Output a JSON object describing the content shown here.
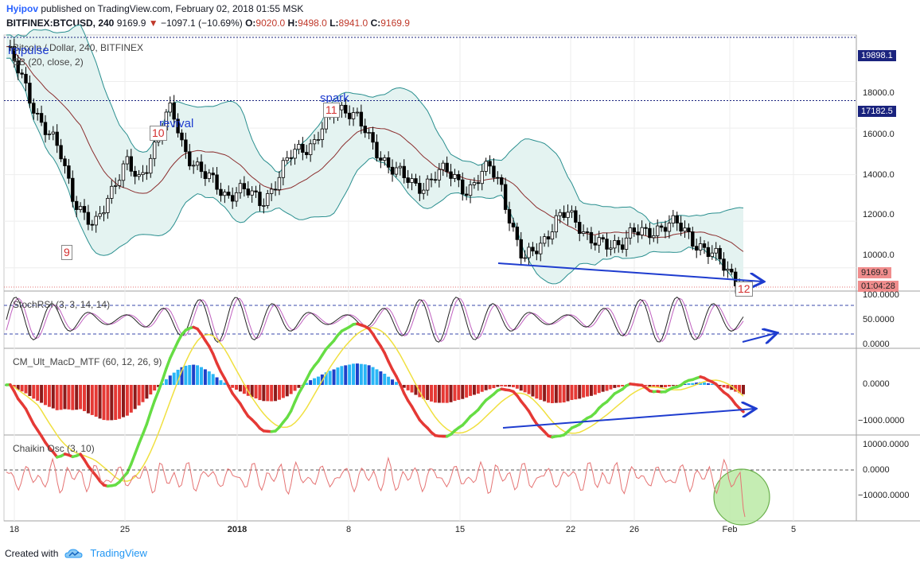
{
  "header": {
    "publisher": "Hyipov",
    "published_text": "published on TradingView.com, February 02, 2018 01:55 MSK",
    "symbol": "BITFINEX:BTCUSD, 240",
    "last": "9169.9",
    "change": "−1097.1 (−10.69%)",
    "o_label": "O:",
    "o_value": "9020.0",
    "h_label": "H:",
    "h_value": "9498.0",
    "l_label": "L:",
    "l_value": "8941.0",
    "c_label": "C:",
    "c_value": "9169.9"
  },
  "main_pane": {
    "title": "Bitcoin / Dollar, 240, BITFINEX",
    "indicator": "BB (20, close, 2)",
    "yaxis_ticks": [
      "18000.0",
      "16000.0",
      "14000.0",
      "12000.0",
      "10000.0"
    ],
    "price_tags": {
      "level_high": "19898.1",
      "level_mid": "17182.5",
      "last": "9169.9",
      "countdown": "01:04:28"
    },
    "annotations": {
      "impulse": "impulse",
      "revival": "revival",
      "spark": "spark"
    },
    "counts": [
      "9",
      "10",
      "11",
      "12"
    ]
  },
  "stochrsi_pane": {
    "title": "StochRSI (3, 3, 14, 14)",
    "yaxis_ticks": [
      "100.0000",
      "50.0000",
      "0.0000"
    ]
  },
  "macd_pane": {
    "title": "CM_Ult_MacD_MTF (60, 12, 26, 9)",
    "yaxis_ticks": [
      "0.0000",
      "−1000.0000"
    ]
  },
  "chaikin_pane": {
    "title": "Chaikin Osc (3, 10)",
    "yaxis_ticks": [
      "10000.0000",
      "0.0000",
      "−10000.0000"
    ]
  },
  "time_axis": [
    "18",
    "25",
    "2018",
    "8",
    "15",
    "22",
    "26",
    "Feb",
    "5"
  ],
  "footer": {
    "created_with": "Created with",
    "brand": "TradingView"
  },
  "colors": {
    "bull": "#ffffff",
    "bear": "#000000",
    "bb_band": "#2a8f8f",
    "bb_fill": "#e4f3f1",
    "basis": "#8b2e2e",
    "level_line": "#1a237e",
    "trend": "#1e3ccf",
    "stoch_k": "#222222",
    "stoch_d": "#c061c0",
    "macd_up": "#66dd44",
    "macd_down": "#e53935",
    "signal": "#f0e040",
    "chaikin": "#e57373",
    "circle_fill": "#b6e8a0"
  },
  "chart_data": [
    {
      "type": "candlestick",
      "title": "Bitcoin / Dollar, 240, BITFINEX",
      "x_ticks": [
        "18",
        "25",
        "2018",
        "8",
        "15",
        "22",
        "26",
        "Feb",
        "5"
      ],
      "ylim": [
        9000,
        20000
      ],
      "close_points": [
        19500,
        18500,
        17500,
        16400,
        15600,
        14800,
        13200,
        12300,
        11600,
        12800,
        13900,
        14500,
        13600,
        14700,
        16000,
        16800,
        15200,
        14600,
        14000,
        13500,
        13100,
        13400,
        13200,
        12800,
        13300,
        14100,
        14900,
        15200,
        15400,
        16200,
        16800,
        16900,
        16400,
        15400,
        14800,
        14400,
        13900,
        13500,
        13600,
        14000,
        14100,
        13800,
        13300,
        13800,
        14400,
        13600,
        11600,
        10200,
        10900,
        11300,
        11900,
        12400,
        12000,
        11200,
        10900,
        11000,
        11200,
        11500,
        11400,
        11700,
        11900,
        11800,
        11400,
        11000,
        10600,
        10200,
        9700,
        9170
      ],
      "bollinger_bands": "BB (20, close, 2)",
      "levels": [
        19898.1,
        17182.5
      ],
      "last": 9169.9
    },
    {
      "type": "line",
      "title": "StochRSI (3, 3, 14, 14)",
      "ylim": [
        0,
        100
      ],
      "levels": [
        80,
        20
      ]
    },
    {
      "type": "bar",
      "title": "CM_Ult_MacD_MTF (60, 12, 26, 9)",
      "ylim": [
        -1300,
        800
      ]
    },
    {
      "type": "line",
      "title": "Chaikin Osc (3, 10)",
      "ylim": [
        -20000,
        12000
      ]
    }
  ]
}
